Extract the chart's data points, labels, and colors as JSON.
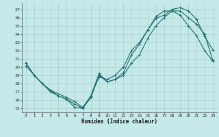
{
  "title": "",
  "xlabel": "Humidex (Indice chaleur)",
  "bg_color": "#c5e8e8",
  "grid_color": "#a8d0d0",
  "line_color": "#1a6b6b",
  "xlim": [
    -0.5,
    23.5
  ],
  "ylim": [
    14.5,
    27.8
  ],
  "xticks": [
    0,
    1,
    2,
    3,
    4,
    5,
    6,
    7,
    8,
    9,
    10,
    11,
    12,
    13,
    14,
    15,
    16,
    17,
    18,
    19,
    20,
    21,
    22,
    23
  ],
  "yticks": [
    15,
    16,
    17,
    18,
    19,
    20,
    21,
    22,
    23,
    24,
    25,
    26,
    27
  ],
  "curve1_x": [
    0,
    1,
    2,
    3,
    4,
    5,
    6,
    7,
    8,
    9,
    10,
    11,
    12,
    13,
    14,
    15,
    16,
    17,
    18,
    19,
    20,
    21,
    22,
    23
  ],
  "curve1_y": [
    20.5,
    19.0,
    18.0,
    17.2,
    16.5,
    16.1,
    15.1,
    15.0,
    16.3,
    19.0,
    18.2,
    18.5,
    19.3,
    21.5,
    22.8,
    24.5,
    25.9,
    26.3,
    27.0,
    27.2,
    26.8,
    25.8,
    23.7,
    22.1
  ],
  "curve2_x": [
    0,
    1,
    2,
    3,
    4,
    5,
    6,
    7,
    8,
    9,
    10,
    11,
    12,
    13,
    14,
    15,
    16,
    17,
    18,
    19,
    20,
    21,
    22,
    23
  ],
  "curve2_y": [
    20.5,
    19.0,
    18.0,
    17.0,
    16.5,
    16.1,
    15.5,
    15.0,
    16.5,
    18.8,
    18.5,
    19.0,
    20.0,
    22.0,
    23.0,
    24.5,
    26.1,
    26.8,
    26.8,
    26.3,
    25.0,
    23.8,
    22.0,
    20.7
  ],
  "curve3_x": [
    0,
    2,
    3,
    5,
    6,
    7,
    8,
    9,
    10,
    11,
    12,
    13,
    14,
    15,
    16,
    17,
    18,
    19,
    20,
    21,
    22,
    23
  ],
  "curve3_y": [
    20.1,
    18.0,
    17.2,
    16.3,
    15.8,
    15.1,
    16.5,
    19.2,
    18.2,
    18.5,
    19.0,
    20.5,
    21.5,
    23.5,
    25.0,
    26.0,
    26.8,
    26.8,
    26.0,
    25.2,
    24.0,
    20.8
  ]
}
